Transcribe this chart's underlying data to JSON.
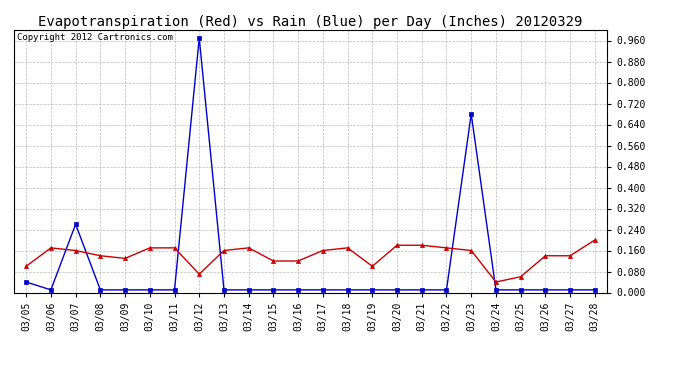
{
  "title": "Evapotranspiration (Red) vs Rain (Blue) per Day (Inches) 20120329",
  "copyright_text": "Copyright 2012 Cartronics.com",
  "dates": [
    "03/05",
    "03/06",
    "03/07",
    "03/08",
    "03/09",
    "03/10",
    "03/11",
    "03/12",
    "03/13",
    "03/14",
    "03/15",
    "03/16",
    "03/17",
    "03/18",
    "03/19",
    "03/20",
    "03/21",
    "03/22",
    "03/23",
    "03/24",
    "03/25",
    "03/26",
    "03/27",
    "03/28"
  ],
  "rain_blue": [
    0.04,
    0.01,
    0.26,
    0.01,
    0.01,
    0.01,
    0.01,
    0.97,
    0.01,
    0.01,
    0.01,
    0.01,
    0.01,
    0.01,
    0.01,
    0.01,
    0.01,
    0.01,
    0.68,
    0.01,
    0.01,
    0.01,
    0.01,
    0.01
  ],
  "et_red": [
    0.1,
    0.17,
    0.16,
    0.14,
    0.13,
    0.17,
    0.17,
    0.07,
    0.16,
    0.17,
    0.12,
    0.12,
    0.16,
    0.17,
    0.1,
    0.18,
    0.18,
    0.17,
    0.16,
    0.04,
    0.06,
    0.14,
    0.14,
    0.2
  ],
  "ylim": [
    0.0,
    1.0
  ],
  "yticks": [
    0.0,
    0.08,
    0.16,
    0.24,
    0.32,
    0.4,
    0.48,
    0.56,
    0.64,
    0.72,
    0.8,
    0.88,
    0.96
  ],
  "rain_color": "#0000cc",
  "et_color": "#cc0000",
  "bg_color": "#ffffff",
  "grid_color": "#bbbbbb",
  "title_fontsize": 10,
  "tick_fontsize": 7,
  "copyright_fontsize": 6.5,
  "figwidth": 6.9,
  "figheight": 3.75,
  "dpi": 100
}
